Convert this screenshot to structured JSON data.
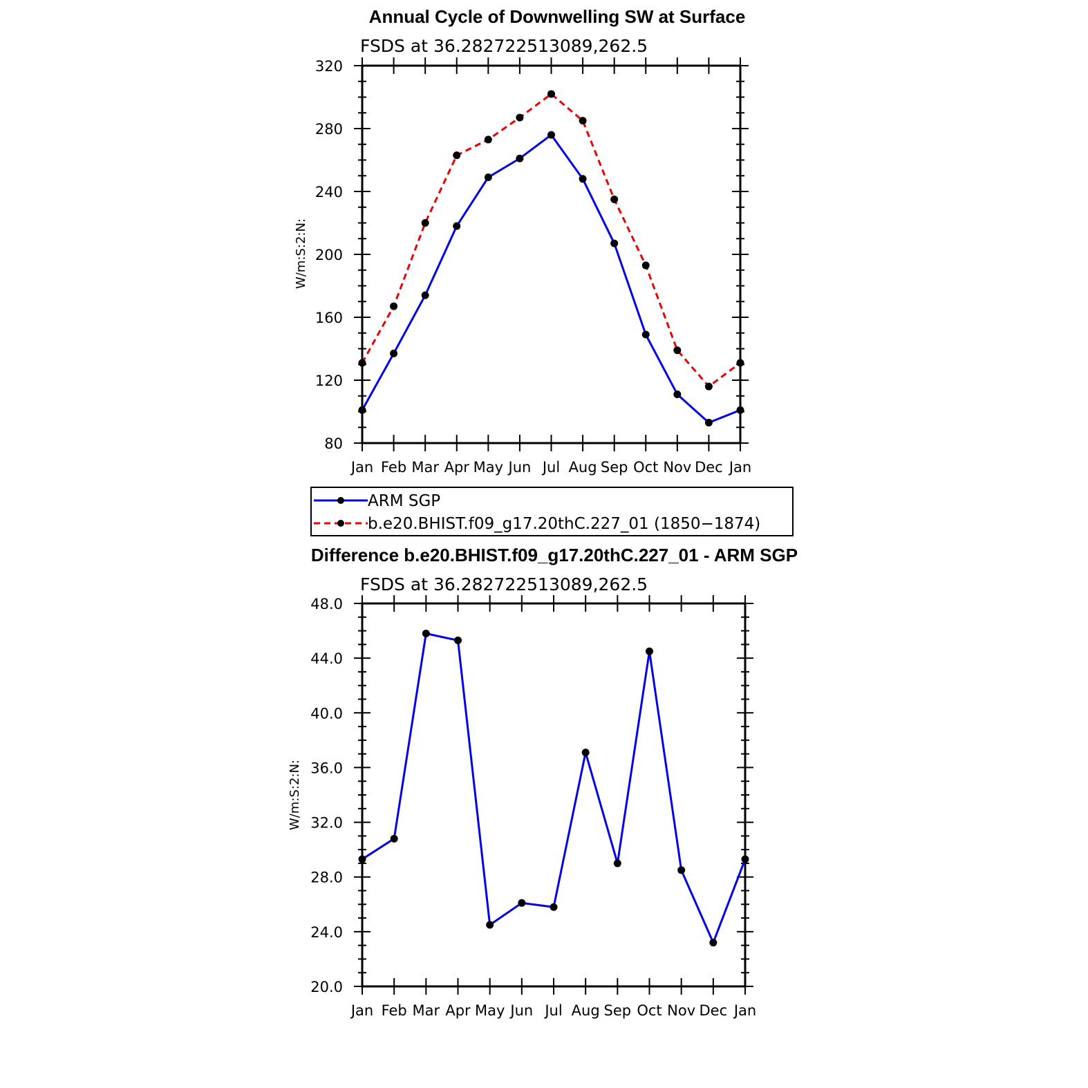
{
  "chart_data": [
    {
      "type": "line",
      "title": "Annual Cycle of Downwelling SW at Surface",
      "subtitle": "FSDS at 36.282722513089,262.5",
      "ylabel": "W/m:S:2:N:",
      "xlabel": "",
      "ylim": [
        80,
        320
      ],
      "yticks": [
        80,
        120,
        160,
        200,
        240,
        280,
        320
      ],
      "ytick_labels": [
        "80",
        "120",
        "160",
        "200",
        "240",
        "280",
        "320"
      ],
      "categories": [
        "Jan",
        "Feb",
        "Mar",
        "Apr",
        "May",
        "Jun",
        "Jul",
        "Aug",
        "Sep",
        "Oct",
        "Nov",
        "Dec",
        "Jan"
      ],
      "series": [
        {
          "name": "ARM SGP",
          "color": "#0000ee",
          "dash": "solid",
          "values": [
            101,
            137,
            174,
            218,
            249,
            261,
            276,
            248,
            207,
            149,
            111,
            93,
            101
          ]
        },
        {
          "name": "b.e20.BHIST.f09_g17.20thC.227_01 (1850−1874)",
          "color": "#ee0000",
          "dash": "dashed",
          "values": [
            131,
            167,
            220,
            263,
            273,
            287,
            302,
            285,
            235,
            193,
            139,
            116,
            131
          ]
        }
      ],
      "legend_position": "below"
    },
    {
      "type": "line",
      "title": "Difference b.e20.BHIST.f09_g17.20thC.227_01 - ARM SGP",
      "subtitle": "FSDS at 36.282722513089,262.5",
      "ylabel": "W/m:S:2:N:",
      "xlabel": "",
      "ylim": [
        20,
        48
      ],
      "yticks": [
        20,
        24,
        28,
        32,
        36,
        40,
        44,
        48
      ],
      "ytick_labels": [
        "20.0",
        "24.0",
        "28.0",
        "32.0",
        "36.0",
        "40.0",
        "44.0",
        "48.0"
      ],
      "categories": [
        "Jan",
        "Feb",
        "Mar",
        "Apr",
        "May",
        "Jun",
        "Jul",
        "Aug",
        "Sep",
        "Oct",
        "Nov",
        "Dec",
        "Jan"
      ],
      "series": [
        {
          "color": "#0000ee",
          "dash": "solid",
          "values": [
            29.3,
            30.8,
            45.8,
            45.3,
            24.5,
            26.1,
            25.8,
            37.1,
            29.0,
            44.5,
            28.5,
            23.2,
            29.3
          ]
        }
      ]
    }
  ]
}
